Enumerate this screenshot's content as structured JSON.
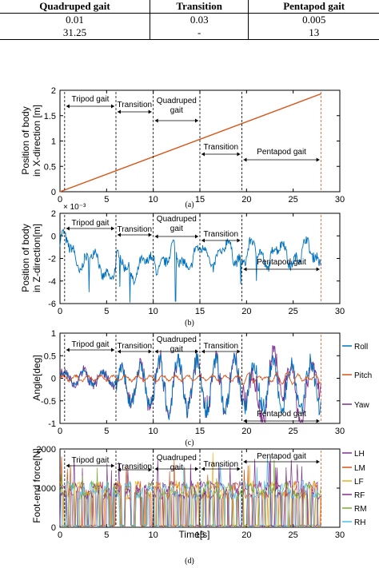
{
  "table": {
    "headers": [
      "Quadruped gait",
      "Transition",
      "Pentapod gait"
    ],
    "rows": [
      [
        "0.01",
        "0.03",
        "0.005"
      ],
      [
        "31.25",
        "-",
        "13"
      ]
    ]
  },
  "colors": {
    "line_red": "#d95319",
    "line_blue": "#0072bd",
    "roll": "#0072bd",
    "pitch": "#d95319",
    "yaw": "#7e2f8e",
    "LH": "#7e2f8e",
    "LM": "#d95319",
    "LF": "#edb120",
    "RF": "#7e2f8e",
    "RM": "#77ac30",
    "RH": "#4dbeee"
  },
  "chart_data": [
    {
      "type": "line",
      "subplot": "(a)",
      "ylabel": "Position of body in X-direction [m]",
      "xlim": [
        0,
        30
      ],
      "ylim": [
        0,
        2
      ],
      "xticks": [
        "0",
        "5",
        "10",
        "15",
        "20",
        "25",
        "30"
      ],
      "yticks": [
        "0",
        "0.5",
        "1",
        "1.5",
        "2"
      ],
      "series": [
        {
          "x": [
            0,
            28
          ],
          "y": [
            0,
            1.93
          ]
        }
      ],
      "phase_boundaries": [
        0.5,
        6,
        10,
        15,
        19.5,
        28
      ],
      "annotations": [
        "Tripod gait",
        "Transition",
        "Quadruped gait",
        "Transition",
        "Pentapod gait"
      ]
    },
    {
      "type": "line",
      "subplot": "(b)",
      "ylabel": "Position of body in Z-direction[m]",
      "yscale_label": "× 10⁻³",
      "xlim": [
        0,
        30
      ],
      "ylim": [
        -6,
        2
      ],
      "xticks": [
        "0",
        "5",
        "10",
        "15",
        "20",
        "25",
        "30"
      ],
      "yticks": [
        "2",
        "0",
        "-2",
        "-4",
        "-6"
      ],
      "series": [
        {
          "mean_start": -0.5,
          "mean_mid": -2.7,
          "mean_end": -1.6,
          "range": [
            -5.8,
            0.6
          ]
        }
      ],
      "annotations": [
        "Tripod gait",
        "Transition",
        "Quadruped gait",
        "Transition",
        "Pentapod gait"
      ]
    },
    {
      "type": "line",
      "subplot": "(c)",
      "ylabel": "Angle[deg]",
      "xlim": [
        0,
        30
      ],
      "ylim": [
        -1,
        1
      ],
      "xticks": [
        "0",
        "5",
        "10",
        "15",
        "20",
        "25",
        "30"
      ],
      "yticks": [
        "1",
        "0.5",
        "0",
        "-0.5",
        "-1"
      ],
      "series": [
        {
          "name": "Roll"
        },
        {
          "name": "Pitch"
        },
        {
          "name": "Yaw"
        }
      ],
      "annotations": [
        "Tripod gait",
        "Transition",
        "Quadruped gait",
        "Transition",
        "Pentapod gait"
      ]
    },
    {
      "type": "line",
      "subplot": "(d)",
      "xlabel": "Time[s]",
      "ylabel": "Foot-end force[N]",
      "xlim": [
        0,
        30
      ],
      "ylim": [
        0,
        2000
      ],
      "xticks": [
        "0",
        "5",
        "10",
        "15",
        "20",
        "25",
        "30"
      ],
      "yticks": [
        "2000",
        "1000",
        "0"
      ],
      "series": [
        {
          "name": "LH"
        },
        {
          "name": "LM"
        },
        {
          "name": "LF"
        },
        {
          "name": "RF"
        },
        {
          "name": "RM"
        },
        {
          "name": "RH"
        }
      ],
      "annotations": [
        "Tripod gait",
        "Transition",
        "Quadruped gait",
        "Transition",
        "Pentapod gait"
      ]
    }
  ]
}
